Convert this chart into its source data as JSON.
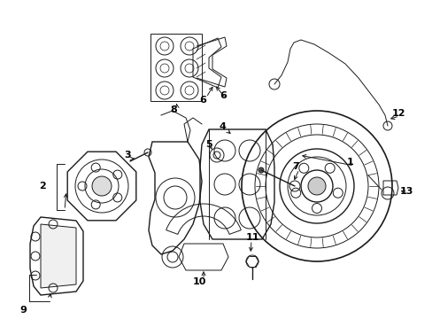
{
  "bg_color": "#ffffff",
  "line_color": "#1a1a1a",
  "label_color": "#000000",
  "fig_width": 4.89,
  "fig_height": 3.6,
  "dpi": 100
}
